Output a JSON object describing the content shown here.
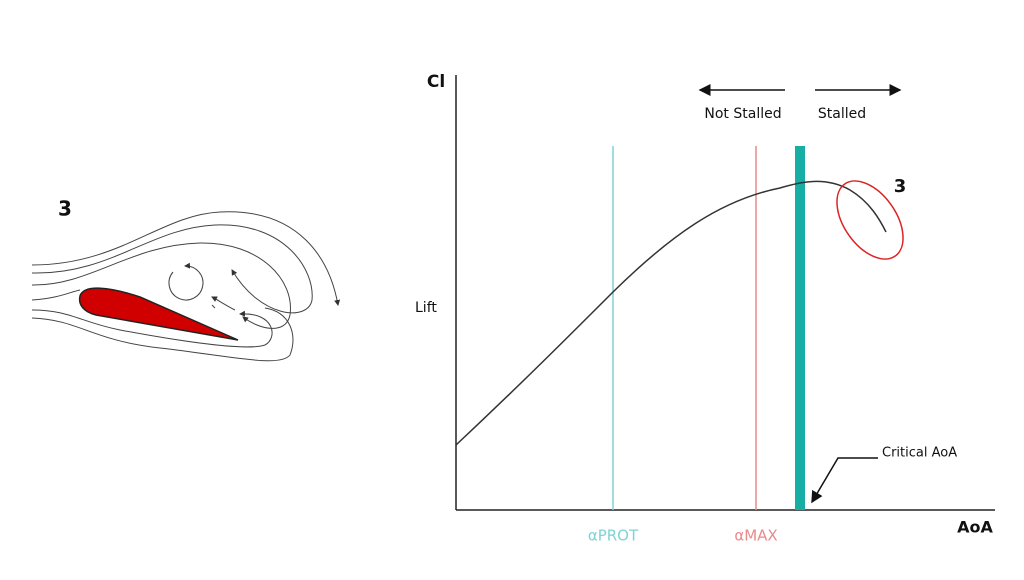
{
  "airfoil": {
    "label": "3"
  },
  "graph": {
    "y_axis_title": "Cl",
    "y_label": "Lift",
    "x_axis_title": "AoA",
    "not_stalled": "Not Stalled",
    "stalled": "Stalled",
    "stall_marker": "3",
    "critical_label": "Critical AoA",
    "alpha_prot": "αPROT",
    "alpha_max": "αMAX"
  }
}
